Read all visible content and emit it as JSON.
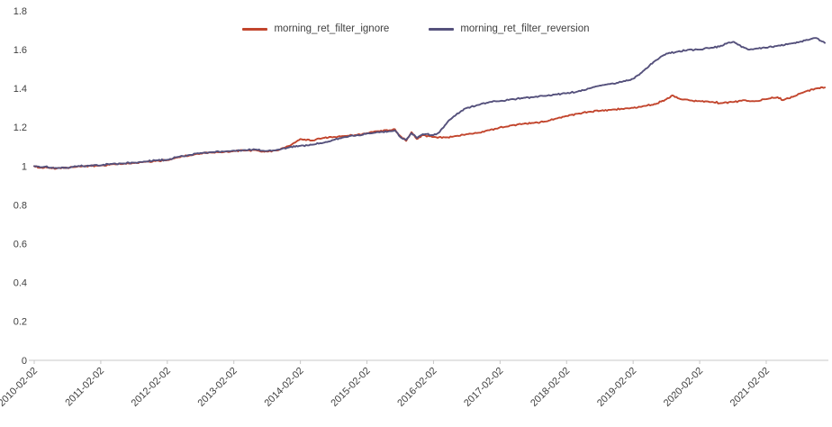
{
  "chart_data": {
    "type": "line",
    "title": "",
    "xlabel": "",
    "ylabel": "",
    "grid": false,
    "legend_position": "top-center",
    "ylim": [
      0,
      1.8
    ],
    "yticks": [
      0,
      0.2,
      0.4,
      0.6,
      0.8,
      1,
      1.2,
      1.4,
      1.6,
      1.8
    ],
    "ytick_labels": [
      "0",
      "0.2",
      "0.4",
      "0.6",
      "0.8",
      "1",
      "1.2",
      "1.4",
      "1.6",
      "1.8"
    ],
    "x_domain": [
      2010.08,
      2021.96
    ],
    "xticks": [
      {
        "t": 2010.08,
        "label": "2010-02-02"
      },
      {
        "t": 2011.08,
        "label": "2011-02-02"
      },
      {
        "t": 2012.08,
        "label": "2012-02-02"
      },
      {
        "t": 2013.08,
        "label": "2013-02-02"
      },
      {
        "t": 2014.08,
        "label": "2014-02-02"
      },
      {
        "t": 2015.08,
        "label": "2015-02-02"
      },
      {
        "t": 2016.08,
        "label": "2016-02-02"
      },
      {
        "t": 2017.08,
        "label": "2017-02-02"
      },
      {
        "t": 2018.08,
        "label": "2018-02-02"
      },
      {
        "t": 2019.08,
        "label": "2019-02-02"
      },
      {
        "t": 2020.08,
        "label": "2020-02-02"
      },
      {
        "t": 2021.08,
        "label": "2021-02-02"
      }
    ],
    "axis_color": "#c8c8c8",
    "series": [
      {
        "name": "morning_ret_filter_ignore",
        "color": "#c2452d",
        "points": [
          [
            2010.08,
            1.0
          ],
          [
            2010.17,
            0.992
          ],
          [
            2010.25,
            0.996
          ],
          [
            2010.33,
            0.99
          ],
          [
            2010.42,
            0.988
          ],
          [
            2010.5,
            0.992
          ],
          [
            2010.58,
            0.99
          ],
          [
            2010.67,
            0.995
          ],
          [
            2010.75,
            1.0
          ],
          [
            2010.83,
            0.998
          ],
          [
            2010.92,
            1.002
          ],
          [
            2011.08,
            1.003
          ],
          [
            2011.25,
            1.01
          ],
          [
            2011.42,
            1.012
          ],
          [
            2011.58,
            1.016
          ],
          [
            2011.75,
            1.022
          ],
          [
            2011.92,
            1.028
          ],
          [
            2012.08,
            1.031
          ],
          [
            2012.25,
            1.046
          ],
          [
            2012.42,
            1.056
          ],
          [
            2012.58,
            1.065
          ],
          [
            2012.75,
            1.07
          ],
          [
            2012.92,
            1.072
          ],
          [
            2013.08,
            1.078
          ],
          [
            2013.25,
            1.08
          ],
          [
            2013.42,
            1.082
          ],
          [
            2013.58,
            1.075
          ],
          [
            2013.75,
            1.082
          ],
          [
            2013.92,
            1.105
          ],
          [
            2014.08,
            1.14
          ],
          [
            2014.25,
            1.132
          ],
          [
            2014.42,
            1.145
          ],
          [
            2014.58,
            1.15
          ],
          [
            2014.75,
            1.155
          ],
          [
            2014.92,
            1.16
          ],
          [
            2015.08,
            1.17
          ],
          [
            2015.25,
            1.18
          ],
          [
            2015.42,
            1.185
          ],
          [
            2015.5,
            1.19
          ],
          [
            2015.58,
            1.155
          ],
          [
            2015.67,
            1.13
          ],
          [
            2015.75,
            1.175
          ],
          [
            2015.83,
            1.14
          ],
          [
            2015.92,
            1.16
          ],
          [
            2016.08,
            1.15
          ],
          [
            2016.25,
            1.148
          ],
          [
            2016.42,
            1.155
          ],
          [
            2016.58,
            1.165
          ],
          [
            2016.75,
            1.172
          ],
          [
            2016.92,
            1.185
          ],
          [
            2017.08,
            1.2
          ],
          [
            2017.25,
            1.21
          ],
          [
            2017.42,
            1.218
          ],
          [
            2017.58,
            1.222
          ],
          [
            2017.75,
            1.23
          ],
          [
            2017.92,
            1.245
          ],
          [
            2018.08,
            1.258
          ],
          [
            2018.25,
            1.27
          ],
          [
            2018.42,
            1.28
          ],
          [
            2018.58,
            1.285
          ],
          [
            2018.75,
            1.29
          ],
          [
            2018.92,
            1.295
          ],
          [
            2019.08,
            1.3
          ],
          [
            2019.25,
            1.31
          ],
          [
            2019.42,
            1.32
          ],
          [
            2019.58,
            1.345
          ],
          [
            2019.67,
            1.365
          ],
          [
            2019.75,
            1.35
          ],
          [
            2019.92,
            1.34
          ],
          [
            2020.08,
            1.335
          ],
          [
            2020.25,
            1.33
          ],
          [
            2020.42,
            1.325
          ],
          [
            2020.58,
            1.33
          ],
          [
            2020.75,
            1.34
          ],
          [
            2020.92,
            1.335
          ],
          [
            2021.08,
            1.345
          ],
          [
            2021.25,
            1.355
          ],
          [
            2021.33,
            1.34
          ],
          [
            2021.5,
            1.36
          ],
          [
            2021.67,
            1.385
          ],
          [
            2021.83,
            1.4
          ],
          [
            2021.96,
            1.405
          ]
        ]
      },
      {
        "name": "morning_ret_filter_reversion",
        "color": "#55517c",
        "points": [
          [
            2010.08,
            1.0
          ],
          [
            2010.17,
            0.994
          ],
          [
            2010.25,
            0.998
          ],
          [
            2010.33,
            0.992
          ],
          [
            2010.42,
            0.99
          ],
          [
            2010.5,
            0.994
          ],
          [
            2010.58,
            0.992
          ],
          [
            2010.67,
            0.997
          ],
          [
            2010.75,
            1.001
          ],
          [
            2010.83,
            1.0
          ],
          [
            2010.92,
            1.003
          ],
          [
            2011.08,
            1.004
          ],
          [
            2011.25,
            1.012
          ],
          [
            2011.42,
            1.014
          ],
          [
            2011.58,
            1.018
          ],
          [
            2011.75,
            1.024
          ],
          [
            2011.92,
            1.03
          ],
          [
            2012.08,
            1.033
          ],
          [
            2012.25,
            1.048
          ],
          [
            2012.42,
            1.058
          ],
          [
            2012.58,
            1.068
          ],
          [
            2012.75,
            1.072
          ],
          [
            2012.92,
            1.075
          ],
          [
            2013.08,
            1.08
          ],
          [
            2013.25,
            1.083
          ],
          [
            2013.42,
            1.085
          ],
          [
            2013.58,
            1.078
          ],
          [
            2013.75,
            1.085
          ],
          [
            2013.92,
            1.098
          ],
          [
            2014.08,
            1.105
          ],
          [
            2014.25,
            1.11
          ],
          [
            2014.42,
            1.12
          ],
          [
            2014.58,
            1.135
          ],
          [
            2014.75,
            1.15
          ],
          [
            2014.92,
            1.158
          ],
          [
            2015.08,
            1.168
          ],
          [
            2015.25,
            1.175
          ],
          [
            2015.42,
            1.18
          ],
          [
            2015.5,
            1.185
          ],
          [
            2015.58,
            1.15
          ],
          [
            2015.67,
            1.135
          ],
          [
            2015.75,
            1.17
          ],
          [
            2015.83,
            1.145
          ],
          [
            2015.92,
            1.165
          ],
          [
            2016.08,
            1.16
          ],
          [
            2016.17,
            1.175
          ],
          [
            2016.25,
            1.21
          ],
          [
            2016.33,
            1.24
          ],
          [
            2016.42,
            1.265
          ],
          [
            2016.5,
            1.285
          ],
          [
            2016.58,
            1.3
          ],
          [
            2016.75,
            1.315
          ],
          [
            2016.92,
            1.33
          ],
          [
            2017.08,
            1.335
          ],
          [
            2017.25,
            1.345
          ],
          [
            2017.42,
            1.35
          ],
          [
            2017.58,
            1.355
          ],
          [
            2017.75,
            1.362
          ],
          [
            2017.92,
            1.37
          ],
          [
            2018.08,
            1.375
          ],
          [
            2018.25,
            1.385
          ],
          [
            2018.42,
            1.4
          ],
          [
            2018.58,
            1.415
          ],
          [
            2018.75,
            1.425
          ],
          [
            2018.92,
            1.435
          ],
          [
            2019.08,
            1.45
          ],
          [
            2019.17,
            1.47
          ],
          [
            2019.25,
            1.495
          ],
          [
            2019.33,
            1.52
          ],
          [
            2019.42,
            1.545
          ],
          [
            2019.5,
            1.565
          ],
          [
            2019.58,
            1.58
          ],
          [
            2019.75,
            1.59
          ],
          [
            2019.92,
            1.6
          ],
          [
            2020.08,
            1.6
          ],
          [
            2020.25,
            1.61
          ],
          [
            2020.42,
            1.62
          ],
          [
            2020.5,
            1.635
          ],
          [
            2020.58,
            1.64
          ],
          [
            2020.67,
            1.625
          ],
          [
            2020.75,
            1.61
          ],
          [
            2020.83,
            1.6
          ],
          [
            2020.92,
            1.605
          ],
          [
            2021.08,
            1.61
          ],
          [
            2021.25,
            1.62
          ],
          [
            2021.42,
            1.63
          ],
          [
            2021.58,
            1.64
          ],
          [
            2021.75,
            1.655
          ],
          [
            2021.83,
            1.66
          ],
          [
            2021.9,
            1.645
          ],
          [
            2021.96,
            1.635
          ]
        ]
      }
    ]
  }
}
